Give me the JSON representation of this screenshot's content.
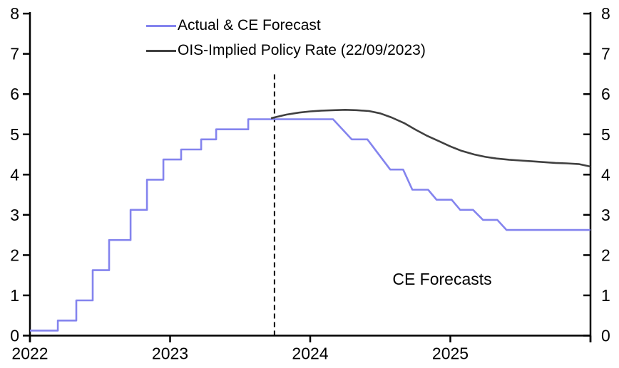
{
  "legend": {
    "items": [
      {
        "label": "Actual & CE Forecast",
        "color": "#8484ee"
      },
      {
        "label": "OIS-Implied Policy Rate (22/09/2023)",
        "color": "#404040"
      }
    ]
  },
  "annotation": {
    "text": "CE Forecasts"
  },
  "axes": {
    "left_tick_labels": [
      "0",
      "1",
      "2",
      "3",
      "4",
      "5",
      "6",
      "7",
      "8"
    ],
    "right_tick_labels": [
      "0",
      "1",
      "2",
      "3",
      "4",
      "5",
      "6",
      "7",
      "8"
    ],
    "x_tick_labels": [
      "2022",
      "2023",
      "2024",
      "2025",
      ""
    ]
  },
  "chart_data": {
    "type": "line",
    "title": "",
    "xlabel": "",
    "ylabel": "",
    "xlim": [
      2022,
      2026
    ],
    "ylim": [
      0,
      8
    ],
    "y_tick_step": 1,
    "x_tick_years": [
      2022,
      2023,
      2024,
      2025,
      2026
    ],
    "grid": false,
    "legend_position": "top-left",
    "forecast_divider": {
      "x": 2023.745,
      "y_from": 0,
      "y_to": 6.5,
      "style": "dashed"
    },
    "series": [
      {
        "name": "Actual & CE Forecast",
        "color": "#8484ee",
        "points": [
          [
            2022.0,
            0.125
          ],
          [
            2022.199,
            0.125
          ],
          [
            2022.199,
            0.375
          ],
          [
            2022.331,
            0.375
          ],
          [
            2022.331,
            0.875
          ],
          [
            2022.448,
            0.875
          ],
          [
            2022.448,
            1.625
          ],
          [
            2022.565,
            1.625
          ],
          [
            2022.565,
            2.375
          ],
          [
            2022.718,
            2.375
          ],
          [
            2022.718,
            3.125
          ],
          [
            2022.835,
            3.125
          ],
          [
            2022.835,
            3.875
          ],
          [
            2022.952,
            3.875
          ],
          [
            2022.952,
            4.375
          ],
          [
            2023.079,
            4.375
          ],
          [
            2023.079,
            4.625
          ],
          [
            2023.222,
            4.625
          ],
          [
            2023.222,
            4.875
          ],
          [
            2023.329,
            4.875
          ],
          [
            2023.329,
            5.125
          ],
          [
            2023.558,
            5.125
          ],
          [
            2023.558,
            5.375
          ],
          [
            2024.163,
            5.375
          ],
          [
            2024.296,
            4.875
          ],
          [
            2024.408,
            4.875
          ],
          [
            2024.571,
            4.125
          ],
          [
            2024.663,
            4.125
          ],
          [
            2024.729,
            3.625
          ],
          [
            2024.841,
            3.625
          ],
          [
            2024.902,
            3.375
          ],
          [
            2025.009,
            3.375
          ],
          [
            2025.07,
            3.125
          ],
          [
            2025.162,
            3.125
          ],
          [
            2025.233,
            2.875
          ],
          [
            2025.335,
            2.875
          ],
          [
            2025.401,
            2.625
          ],
          [
            2026.0,
            2.625
          ]
        ]
      },
      {
        "name": "OIS-Implied Policy Rate (22/09/2023)",
        "color": "#404040",
        "points": [
          [
            2023.72,
            5.4
          ],
          [
            2023.83,
            5.49
          ],
          [
            2023.92,
            5.54
          ],
          [
            2024.0,
            5.57
          ],
          [
            2024.08,
            5.59
          ],
          [
            2024.17,
            5.6
          ],
          [
            2024.25,
            5.61
          ],
          [
            2024.33,
            5.6
          ],
          [
            2024.42,
            5.58
          ],
          [
            2024.5,
            5.52
          ],
          [
            2024.58,
            5.42
          ],
          [
            2024.67,
            5.28
          ],
          [
            2024.75,
            5.12
          ],
          [
            2024.83,
            4.97
          ],
          [
            2024.92,
            4.83
          ],
          [
            2025.0,
            4.7
          ],
          [
            2025.08,
            4.59
          ],
          [
            2025.17,
            4.5
          ],
          [
            2025.25,
            4.44
          ],
          [
            2025.33,
            4.4
          ],
          [
            2025.42,
            4.37
          ],
          [
            2025.5,
            4.35
          ],
          [
            2025.58,
            4.33
          ],
          [
            2025.67,
            4.31
          ],
          [
            2025.75,
            4.29
          ],
          [
            2025.83,
            4.28
          ],
          [
            2025.92,
            4.26
          ],
          [
            2026.0,
            4.2
          ]
        ]
      }
    ],
    "annotations": [
      {
        "text": "CE Forecasts",
        "x": 2024.94,
        "y": 1.41
      }
    ]
  }
}
